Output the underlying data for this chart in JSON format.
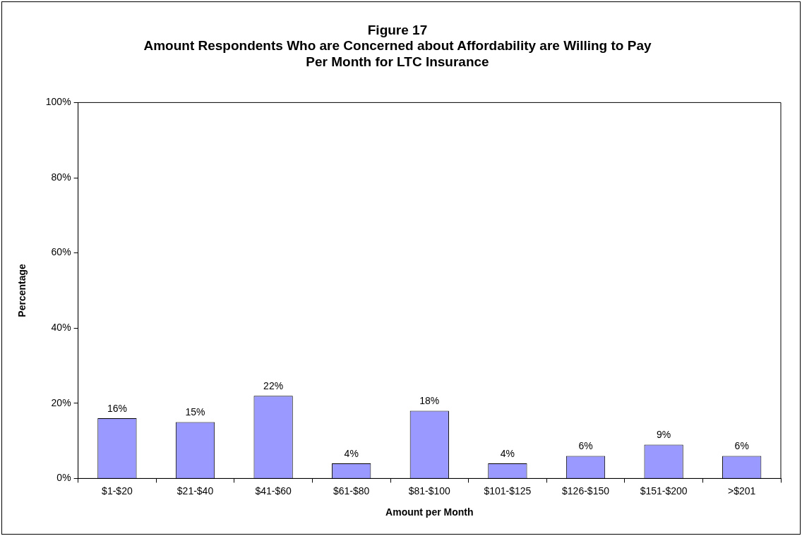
{
  "chart_data": {
    "type": "bar",
    "title": "Figure 17\nAmount Respondents Who are Concerned about Affordability are Willing to Pay\nPer Month for LTC Insurance",
    "xlabel": "Amount per Month",
    "ylabel": "Percentage",
    "categories": [
      "$1-$20",
      "$21-$40",
      "$41-$60",
      "$61-$80",
      "$81-$100",
      "$101-$125",
      "$126-$150",
      "$151-$200",
      ">$201"
    ],
    "values": [
      16,
      15,
      22,
      4,
      18,
      4,
      6,
      9,
      6
    ],
    "value_labels": [
      "16%",
      "15%",
      "22%",
      "4%",
      "18%",
      "4%",
      "6%",
      "9%",
      "6%"
    ],
    "color": "#9999ff",
    "ylim": [
      0,
      100
    ],
    "yticks": [
      {
        "value": 0,
        "label": "0%"
      },
      {
        "value": 20,
        "label": "20%"
      },
      {
        "value": 40,
        "label": "40%"
      },
      {
        "value": 60,
        "label": "60%"
      },
      {
        "value": 80,
        "label": "80%"
      },
      {
        "value": 100,
        "label": "100%"
      }
    ],
    "grid": false,
    "legend": false
  }
}
